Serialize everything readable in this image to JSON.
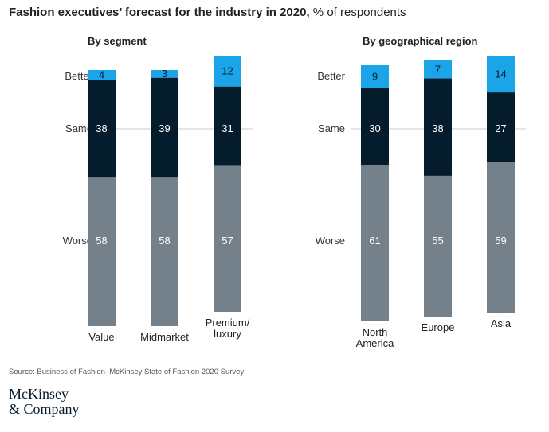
{
  "title": {
    "bold": "Fashion executives’ forecast for the industry in 2020,",
    "rest": " % of respondents"
  },
  "source": "Source: Business of Fashion–McKinsey State of Fashion 2020 Survey",
  "logo": {
    "line1": "McKinsey",
    "line2": "& Company"
  },
  "colors": {
    "better": "#1ba5e8",
    "same": "#051c2c",
    "worse": "#74808a",
    "axis_text": "#333333",
    "gridline": "#cccccc"
  },
  "chart_data": [
    {
      "type": "bar",
      "stacked": true,
      "title": "By segment",
      "row_labels": [
        "Better",
        "Same",
        "Worse"
      ],
      "categories": [
        "Value",
        "Midmarket",
        "Premium/ luxury"
      ],
      "series": [
        {
          "name": "Worse",
          "values": [
            58,
            58,
            57
          ]
        },
        {
          "name": "Same",
          "values": [
            38,
            39,
            31
          ]
        },
        {
          "name": "Better",
          "values": [
            4,
            3,
            12
          ]
        }
      ]
    },
    {
      "type": "bar",
      "stacked": true,
      "title": "By geographical region",
      "row_labels": [
        "Better",
        "Same",
        "Worse"
      ],
      "categories": [
        "North America",
        "Europe",
        "Asia"
      ],
      "series": [
        {
          "name": "Worse",
          "values": [
            61,
            55,
            59
          ]
        },
        {
          "name": "Same",
          "values": [
            30,
            38,
            27
          ]
        },
        {
          "name": "Better",
          "values": [
            9,
            7,
            14
          ]
        }
      ]
    }
  ]
}
